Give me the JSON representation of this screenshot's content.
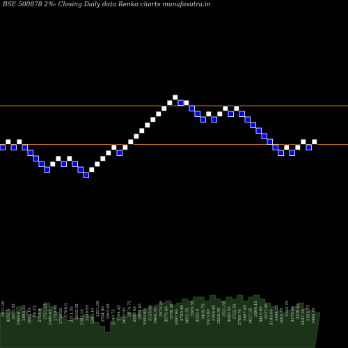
{
  "chart_data": {
    "type": "renko",
    "title": "BSE 500878  2%-  Closing Daily data  Renko  charts munafasutra.in",
    "colors": {
      "background": "#000000",
      "up_brick": "#ffffff",
      "down_brick": "#0000ff",
      "level_line": "#c8781e",
      "volume_fill": "#1b3318",
      "volume_line": "#3f6a30"
    },
    "grid": false,
    "bricks": [
      {
        "dir": "down",
        "level": 0
      },
      {
        "dir": "up",
        "level": 1
      },
      {
        "dir": "down",
        "level": 0
      },
      {
        "dir": "up",
        "level": 1
      },
      {
        "dir": "down",
        "level": 0
      },
      {
        "dir": "down",
        "level": -1
      },
      {
        "dir": "down",
        "level": -2
      },
      {
        "dir": "down",
        "level": -3
      },
      {
        "dir": "down",
        "level": -4
      },
      {
        "dir": "up",
        "level": -3
      },
      {
        "dir": "up",
        "level": -2
      },
      {
        "dir": "down",
        "level": -3
      },
      {
        "dir": "up",
        "level": -2
      },
      {
        "dir": "down",
        "level": -3
      },
      {
        "dir": "down",
        "level": -4
      },
      {
        "dir": "down",
        "level": -5
      },
      {
        "dir": "up",
        "level": -4
      },
      {
        "dir": "up",
        "level": -3
      },
      {
        "dir": "up",
        "level": -2
      },
      {
        "dir": "up",
        "level": -1
      },
      {
        "dir": "up",
        "level": 0
      },
      {
        "dir": "down",
        "level": -1
      },
      {
        "dir": "up",
        "level": 0
      },
      {
        "dir": "up",
        "level": 1
      },
      {
        "dir": "up",
        "level": 2
      },
      {
        "dir": "up",
        "level": 3
      },
      {
        "dir": "up",
        "level": 4
      },
      {
        "dir": "up",
        "level": 5
      },
      {
        "dir": "up",
        "level": 6
      },
      {
        "dir": "up",
        "level": 7
      },
      {
        "dir": "up",
        "level": 8
      },
      {
        "dir": "up",
        "level": 9
      },
      {
        "dir": "down",
        "level": 8
      },
      {
        "dir": "up",
        "level": 8
      },
      {
        "dir": "down",
        "level": 7
      },
      {
        "dir": "down",
        "level": 6
      },
      {
        "dir": "down",
        "level": 5
      },
      {
        "dir": "up",
        "level": 6
      },
      {
        "dir": "down",
        "level": 5
      },
      {
        "dir": "up",
        "level": 6
      },
      {
        "dir": "up",
        "level": 7
      },
      {
        "dir": "down",
        "level": 6
      },
      {
        "dir": "up",
        "level": 7
      },
      {
        "dir": "down",
        "level": 6
      },
      {
        "dir": "down",
        "level": 5
      },
      {
        "dir": "down",
        "level": 4
      },
      {
        "dir": "down",
        "level": 3
      },
      {
        "dir": "down",
        "level": 2
      },
      {
        "dir": "down",
        "level": 1
      },
      {
        "dir": "down",
        "level": 0
      },
      {
        "dir": "down",
        "level": -1
      },
      {
        "dir": "up",
        "level": 0
      },
      {
        "dir": "down",
        "level": -1
      },
      {
        "dir": "up",
        "level": 0
      },
      {
        "dir": "up",
        "level": 1
      },
      {
        "dir": "down",
        "level": 0
      },
      {
        "dir": "up",
        "level": 1
      }
    ],
    "level_lines": [
      7,
      0
    ],
    "volume": {
      "levels": [
        0.55,
        0.6,
        0.55,
        0.7,
        0.6,
        0.5,
        0.45,
        0.65,
        0.8,
        0.7,
        0.55,
        0.45,
        0.35,
        0.4,
        0.4,
        0.5,
        0.45,
        0.3,
        0.2,
        0.05,
        0.3,
        0.4,
        0.45,
        0.55,
        0.5,
        0.6,
        0.65,
        0.7,
        0.75,
        0.8,
        0.85,
        0.75,
        0.8,
        0.9,
        0.85,
        0.95,
        0.95,
        0.85,
        1.0,
        0.9,
        0.85,
        0.95,
        0.9,
        1.0,
        0.85,
        0.95,
        1.0,
        0.9,
        0.8,
        0.7,
        0.6,
        0.55,
        0.6,
        0.7,
        0.8,
        0.65,
        0.6,
        0.55
      ],
      "labels": [
        "3031.90",
        "4052.5",
        "2872.55",
        "2989.6",
        "2993.10",
        "3062.10",
        "68.15",
        "2718.9",
        "2721.25",
        "2696.65",
        "2750.10",
        "2724.20",
        "2768.8",
        "2711.35",
        "2633.05",
        "2562.10",
        "2539.95",
        "2383.10",
        "2331.95",
        "2554.90",
        "2563.65",
        "2540.75",
        "2594.45",
        "2623.90",
        "2674.75",
        "2889.45",
        "2903.40",
        "3000.85",
        "3135.00",
        "3466.35",
        "3574.25",
        "3675.40",
        "3798.35",
        "3897.90",
        "3780.40",
        "3692.55",
        "3585.35",
        "3555.0",
        "3439.70",
        "3510.60",
        "3568.40",
        "3556.30",
        "3531.85",
        "3643.55",
        "3722.55",
        "3769.70",
        "3867.45",
        "3627.35",
        "3564.15",
        "3410.80",
        "3337.00",
        "3180.00",
        "3044.25",
        "3065.75",
        "3150.70",
        "3179.00",
        "3339.40",
        "3437.10",
        "3595.75",
        "3444.75"
      ]
    }
  }
}
